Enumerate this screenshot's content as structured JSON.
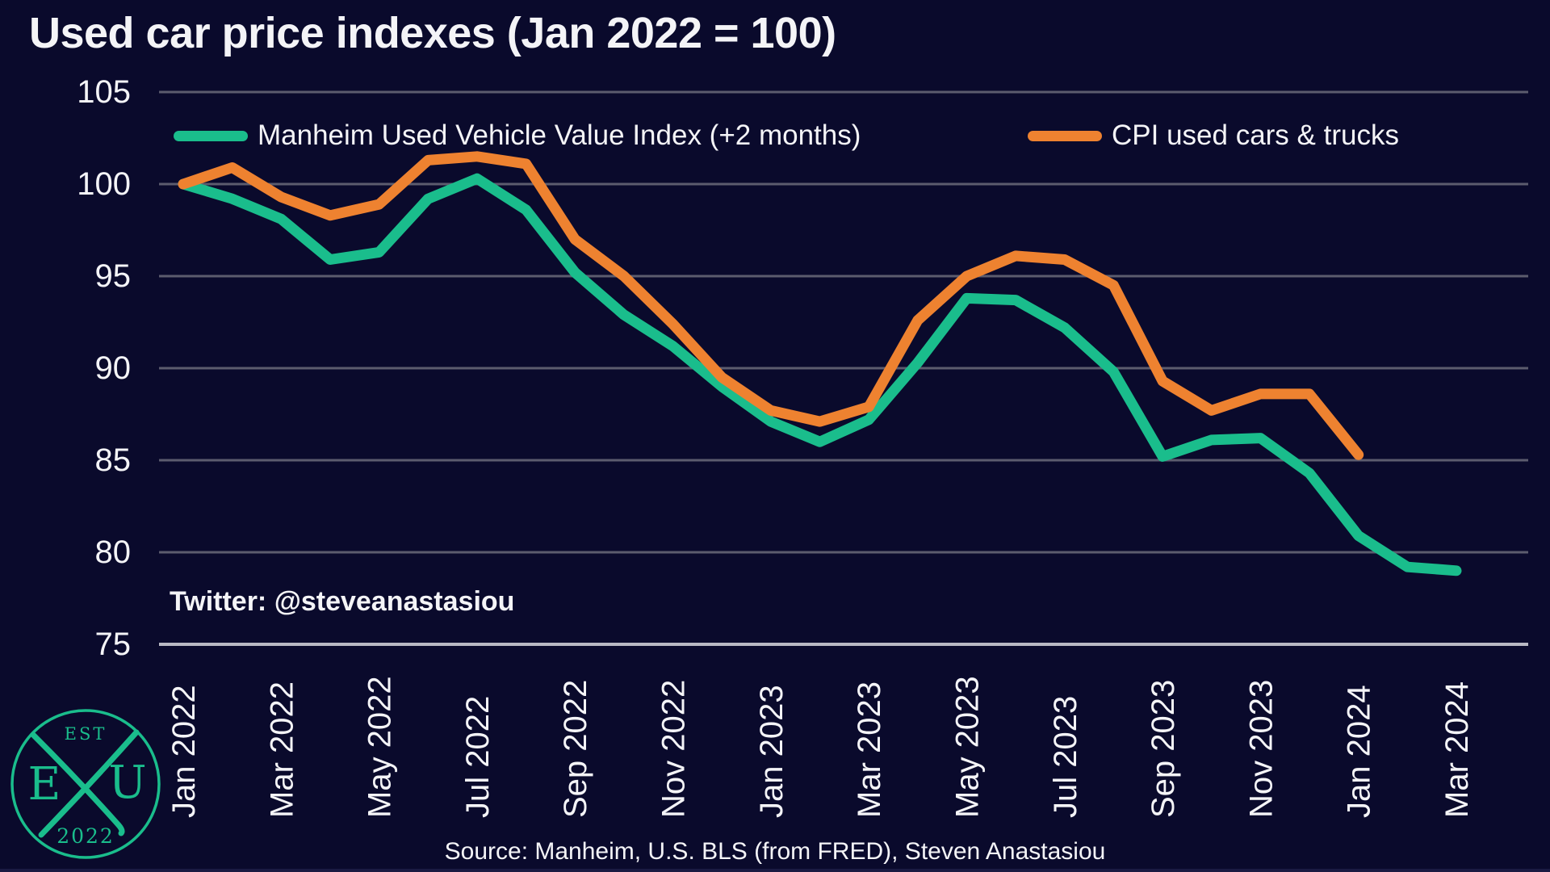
{
  "title": "Used car price indexes (Jan 2022 = 100)",
  "watermark": "Twitter: @steveanastasiou",
  "source": "Source: Manheim, U.S. BLS (from FRED), Steven Anastasiou",
  "logo": {
    "est": "EST",
    "left_letter": "E",
    "right_letter": "U",
    "year": "2022"
  },
  "legend": {
    "manheim_label": "Manheim Used Vehicle Value Index (+2 months)",
    "cpi_label": "CPI used cars & trucks"
  },
  "colors": {
    "background": "#0a0a2c",
    "manheim": "#1abd8c",
    "cpi": "#ee8230",
    "grid": "#5c5c6e",
    "axis": "#b9b9c4",
    "text": "#f4f4f7"
  },
  "chart_data": {
    "type": "line",
    "title": "Used car price indexes (Jan 2022 = 100)",
    "xlabel": "",
    "ylabel": "",
    "ylim": [
      75,
      105
    ],
    "yticks": [
      105,
      100,
      95,
      90,
      85,
      80,
      75
    ],
    "grid": "horizontal gridlines, bottom axis emphasized",
    "legend_position": "top inside plot",
    "x_tick_labels": [
      "Jan 2022",
      "Mar 2022",
      "May 2022",
      "Jul 2022",
      "Sep 2022",
      "Nov 2022",
      "Jan 2023",
      "Mar 2023",
      "May 2023",
      "Jul 2023",
      "Sep 2023",
      "Nov 2023",
      "Jan 2024",
      "Mar 2024"
    ],
    "months": [
      "Jan 2022",
      "Feb 2022",
      "Mar 2022",
      "Apr 2022",
      "May 2022",
      "Jun 2022",
      "Jul 2022",
      "Aug 2022",
      "Sep 2022",
      "Oct 2022",
      "Nov 2022",
      "Dec 2022",
      "Jan 2023",
      "Feb 2023",
      "Mar 2023",
      "Apr 2023",
      "May 2023",
      "Jun 2023",
      "Jul 2023",
      "Aug 2023",
      "Sep 2023",
      "Oct 2023",
      "Nov 2023",
      "Dec 2023",
      "Jan 2024",
      "Feb 2024",
      "Mar 2024"
    ],
    "series": [
      {
        "name": "Manheim Used Vehicle Value Index (+2 months)",
        "color": "#1abd8c",
        "values": [
          100.0,
          99.2,
          98.1,
          95.9,
          96.3,
          99.2,
          100.3,
          98.6,
          95.2,
          92.9,
          91.2,
          89.0,
          87.1,
          86.0,
          87.2,
          90.3,
          93.8,
          93.7,
          92.2,
          89.8,
          85.2,
          86.1,
          86.2,
          84.3,
          80.9,
          79.2,
          79.0
        ]
      },
      {
        "name": "CPI used cars & trucks",
        "color": "#ee8230",
        "values": [
          100.0,
          100.9,
          99.3,
          98.3,
          98.9,
          101.3,
          101.5,
          101.1,
          97.0,
          95.0,
          92.4,
          89.5,
          87.7,
          87.1,
          87.9,
          92.6,
          95.0,
          96.1,
          95.9,
          94.5,
          89.3,
          87.7,
          88.6,
          88.6,
          85.3
        ]
      }
    ]
  }
}
